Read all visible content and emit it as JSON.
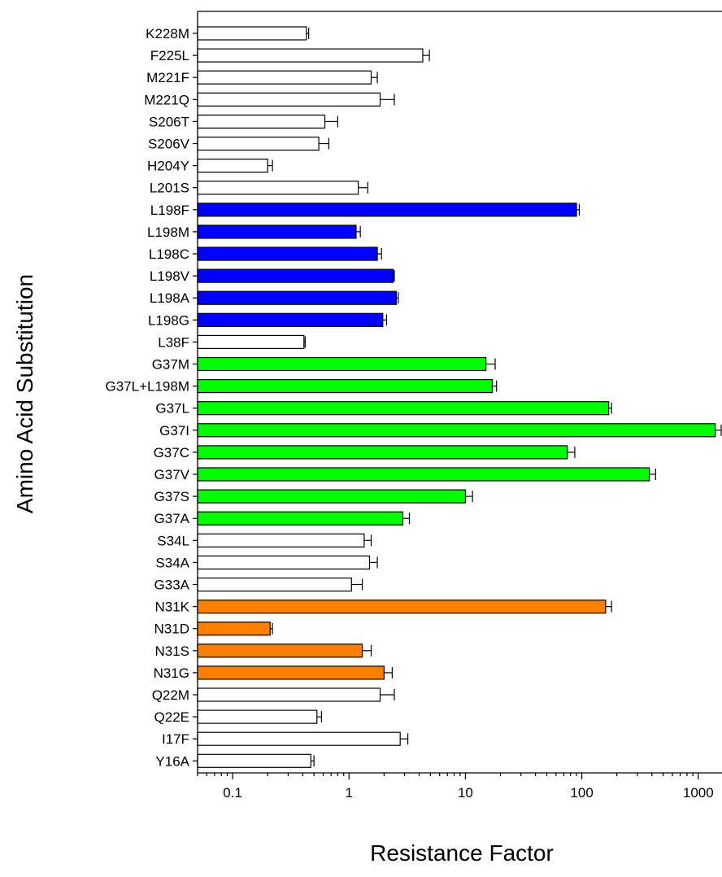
{
  "chart_data": {
    "type": "bar",
    "orientation": "horizontal",
    "xscale": "log",
    "xlabel": "Resistance Factor",
    "ylabel": "Amino Acid Substitution",
    "xlim": [
      0.05,
      1600
    ],
    "xticks": [
      "0.1",
      "1",
      "10",
      "100",
      "1000"
    ],
    "grid": false,
    "categories": [
      "K228M",
      "F225L",
      "M221F",
      "M221Q",
      "S206T",
      "S206V",
      "H204Y",
      "L201S",
      "L198F",
      "L198M",
      "L198C",
      "L198V",
      "L198A",
      "L198G",
      "L38F",
      "G37M",
      "G37L+L198M",
      "G37L",
      "G37I",
      "G37C",
      "G37V",
      "G37S",
      "G37A",
      "S34L",
      "S34A",
      "G33A",
      "N31K",
      "N31D",
      "N31S",
      "N31G",
      "Q22M",
      "Q22E",
      "I17F",
      "Y16A"
    ],
    "values": [
      0.43,
      4.3,
      1.55,
      1.85,
      0.62,
      0.55,
      0.2,
      1.2,
      90,
      1.15,
      1.75,
      2.4,
      2.55,
      1.95,
      0.41,
      15,
      17,
      170,
      1400,
      75,
      380,
      10,
      2.9,
      1.35,
      1.5,
      1.05,
      160,
      0.21,
      1.3,
      2.0,
      1.85,
      0.53,
      2.75,
      0.47
    ],
    "errors": [
      0.02,
      0.6,
      0.2,
      0.6,
      0.18,
      0.12,
      0.02,
      0.25,
      5,
      0.1,
      0.15,
      0.05,
      0.1,
      0.15,
      0.01,
      3,
      1.5,
      10,
      300,
      12,
      50,
      1.5,
      0.4,
      0.2,
      0.25,
      0.25,
      20,
      0.01,
      0.25,
      0.35,
      0.6,
      0.05,
      0.45,
      0.03
    ],
    "colors": [
      "#ffffff",
      "#ffffff",
      "#ffffff",
      "#ffffff",
      "#ffffff",
      "#ffffff",
      "#ffffff",
      "#ffffff",
      "#0000ff",
      "#0000ff",
      "#0000ff",
      "#0000ff",
      "#0000ff",
      "#0000ff",
      "#ffffff",
      "#00ff00",
      "#00ff00",
      "#00ff00",
      "#00ff00",
      "#00ff00",
      "#00ff00",
      "#00ff00",
      "#00ff00",
      "#ffffff",
      "#ffffff",
      "#ffffff",
      "#ff8000",
      "#ff8000",
      "#ff8000",
      "#ff8000",
      "#ffffff",
      "#ffffff",
      "#ffffff",
      "#ffffff"
    ]
  }
}
